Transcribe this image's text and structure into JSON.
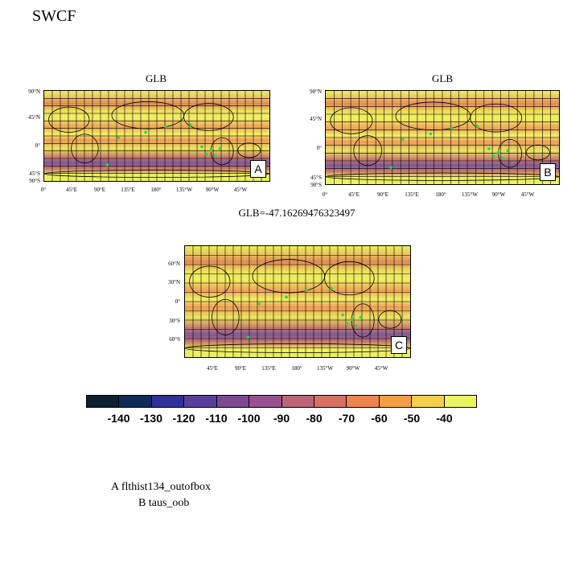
{
  "page": {
    "title": "SWCF"
  },
  "panels": [
    {
      "id": "A",
      "title": "GLB",
      "box_label": "A",
      "y_ticks": [
        "90°N",
        "45°N",
        "0°",
        "45°S",
        "90°S"
      ],
      "x_ticks": [
        "0°",
        "45°E",
        "90°E",
        "135°E",
        "180°",
        "135°W",
        "90°W",
        "45°W"
      ]
    },
    {
      "id": "B",
      "title": "GLB",
      "box_label": "B",
      "y_ticks": [
        "90°N",
        "45°N",
        "0°",
        "45°S",
        "90°S"
      ],
      "x_ticks": [
        "0°",
        "45°E",
        "90°E",
        "135°E",
        "180°",
        "135°W",
        "90°W",
        "45°W"
      ]
    },
    {
      "id": "C",
      "title": "GLB=-47.16269476323497",
      "box_label": "C",
      "y_ticks": [
        "60°N",
        "30°N",
        "0°",
        "30°S",
        "60°S"
      ],
      "x_ticks": [
        "45°E",
        "90°E",
        "135°E",
        "180°",
        "135°W",
        "90°W",
        "45°W"
      ]
    }
  ],
  "colorbar": {
    "colors": [
      "#0b2030",
      "#102a5a",
      "#30309a",
      "#58409a",
      "#7c4a94",
      "#9a5090",
      "#bc6478",
      "#d87064",
      "#ef8450",
      "#f4a040",
      "#f4cf48",
      "#eaf55e"
    ],
    "labels": [
      "-140",
      "-130",
      "-120",
      "-110",
      "-100",
      "-90",
      "-80",
      "-70",
      "-60",
      "-50",
      "-40"
    ]
  },
  "legend": {
    "line_a": "A  flthist134_outofbox",
    "line_b": "B  taus_oob"
  }
}
